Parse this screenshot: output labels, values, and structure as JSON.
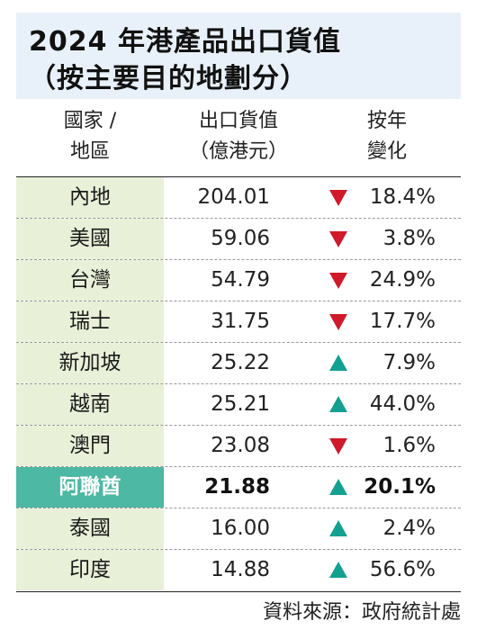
{
  "title": {
    "line1": "2024 年港產品出口貨值",
    "line2": "（按主要目的地劃分）"
  },
  "headers": {
    "country_line1": "國家 /",
    "country_line2": "地區",
    "value_line1": "出口貨值",
    "value_line2": "（億港元）",
    "change_line1": "按年",
    "change_line2": "變化"
  },
  "rows": [
    {
      "country": "內地",
      "value": "204.01",
      "direction": "down",
      "change": "18.4%"
    },
    {
      "country": "美國",
      "value": "59.06",
      "direction": "down",
      "change": "3.8%"
    },
    {
      "country": "台灣",
      "value": "54.79",
      "direction": "down",
      "change": "24.9%"
    },
    {
      "country": "瑞士",
      "value": "31.75",
      "direction": "down",
      "change": "17.7%"
    },
    {
      "country": "新加坡",
      "value": "25.22",
      "direction": "up",
      "change": "7.9%"
    },
    {
      "country": "越南",
      "value": "25.21",
      "direction": "up",
      "change": "44.0%"
    },
    {
      "country": "澳門",
      "value": "23.08",
      "direction": "down",
      "change": "1.6%"
    },
    {
      "country": "阿聯酋",
      "value": "21.88",
      "direction": "up",
      "change": "20.1%"
    },
    {
      "country": "泰國",
      "value": "16.00",
      "direction": "up",
      "change": "2.4%"
    },
    {
      "country": "印度",
      "value": "14.88",
      "direction": "up",
      "change": "56.6%"
    }
  ],
  "highlight_index": 7,
  "source": "資料來源：政府統計處",
  "colors": {
    "title_bg": "#e8f1f9",
    "country_bg": "#e8f0d8",
    "highlight_bg": "#4db8a4",
    "down_arrow": "#d0192a",
    "up_arrow": "#14a090"
  },
  "chart_data": {
    "type": "table",
    "title": "2024 年港產品出口貨值（按主要目的地劃分）",
    "columns": [
      "國家 / 地區",
      "出口貨值（億港元）",
      "按年變化"
    ],
    "categories": [
      "內地",
      "美國",
      "台灣",
      "瑞士",
      "新加坡",
      "越南",
      "澳門",
      "阿聯酋",
      "泰國",
      "印度"
    ],
    "values": [
      204.01,
      59.06,
      54.79,
      31.75,
      25.22,
      25.21,
      23.08,
      21.88,
      16.0,
      14.88
    ],
    "yoy_change_percent": [
      -18.4,
      -3.8,
      -24.9,
      -17.7,
      7.9,
      44.0,
      -1.6,
      20.1,
      2.4,
      56.6
    ]
  }
}
